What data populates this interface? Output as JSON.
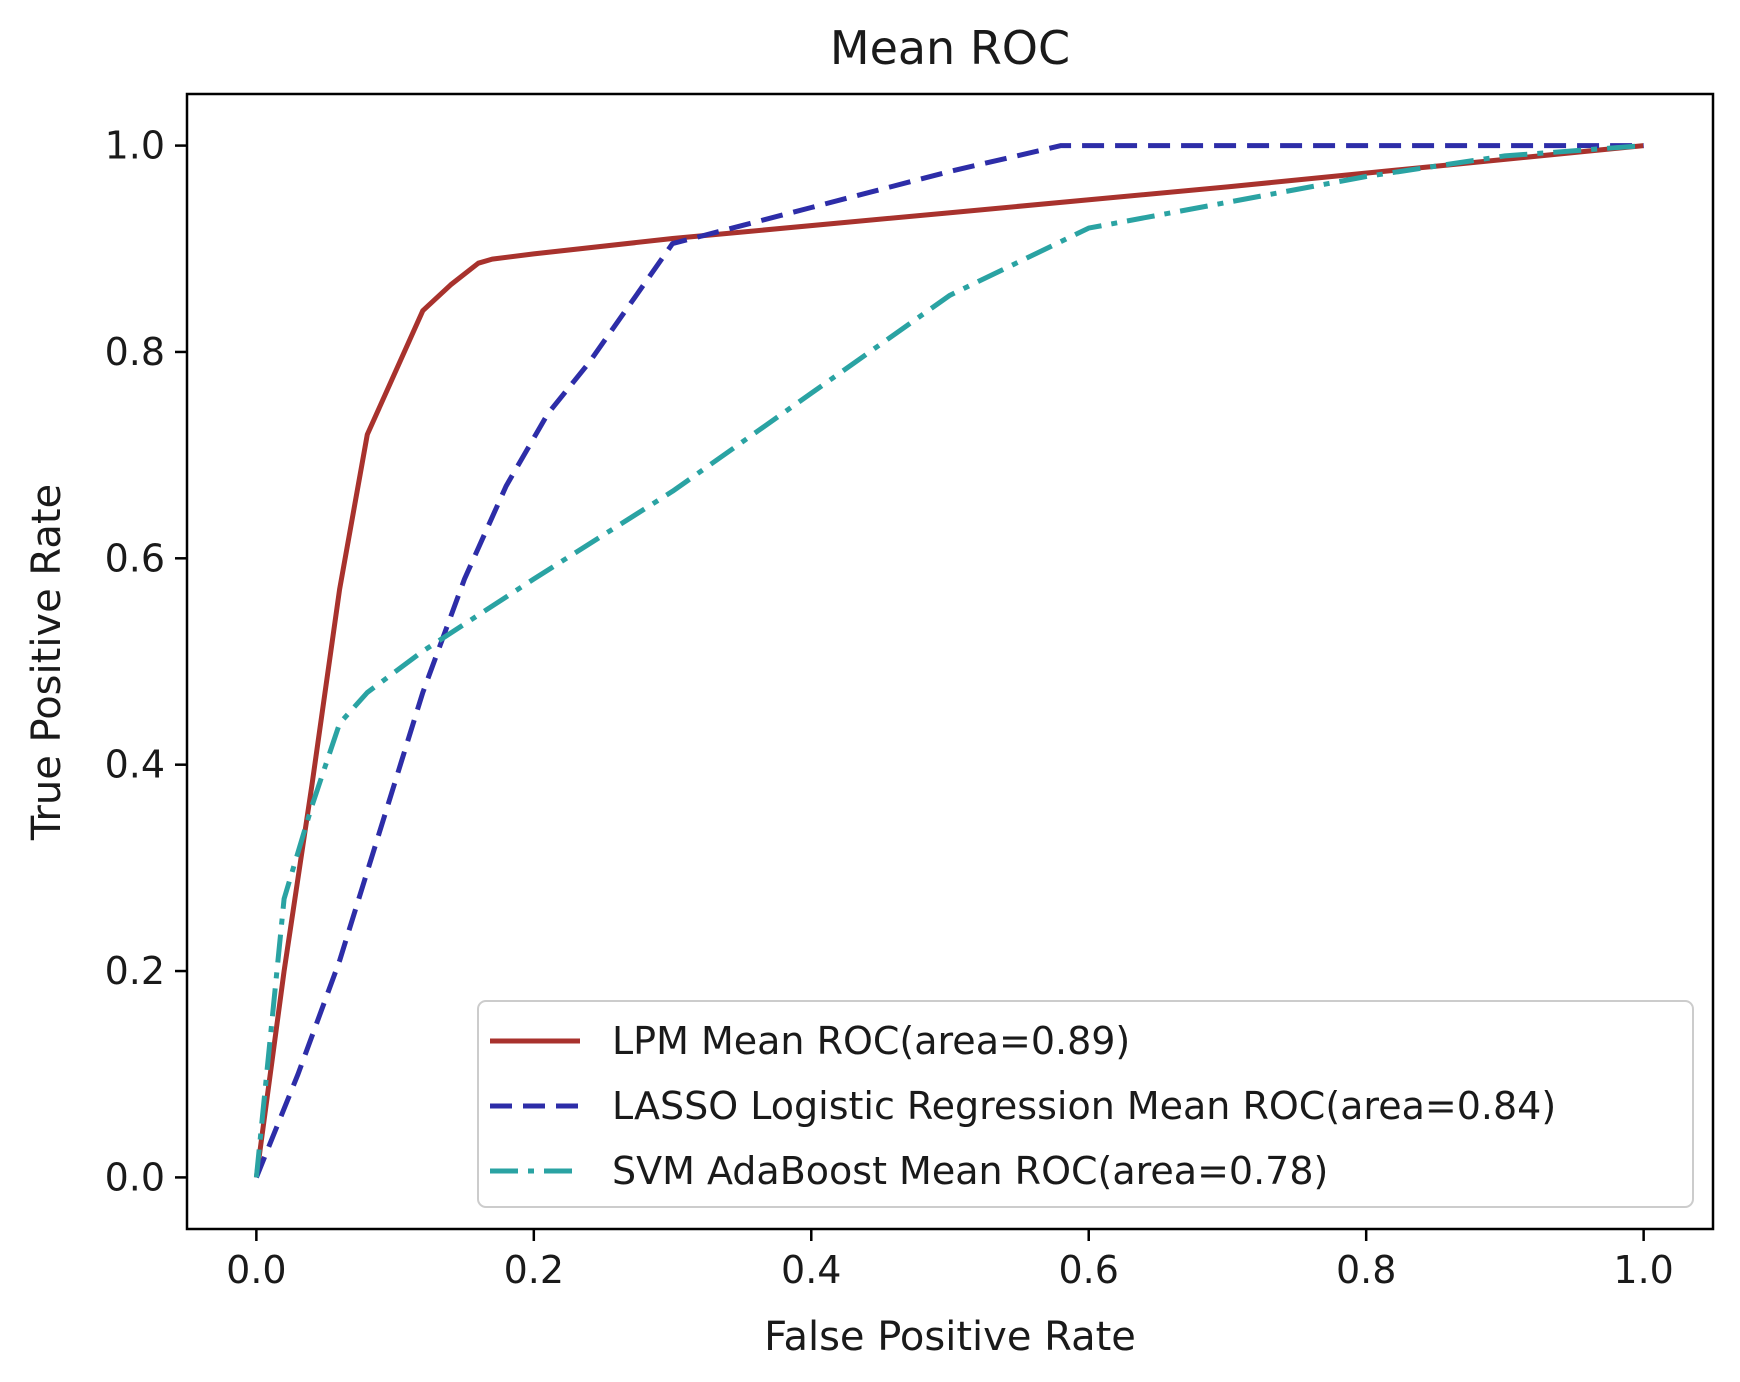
{
  "chart_data": {
    "type": "line",
    "title": "Mean ROC",
    "xlabel": "False Positive Rate",
    "ylabel": "True Positive Rate",
    "xlim": [
      -0.05,
      1.05
    ],
    "ylim": [
      -0.05,
      1.05
    ],
    "xticks": [
      0.0,
      0.2,
      0.4,
      0.6,
      0.8,
      1.0
    ],
    "xtick_labels": [
      "0.0",
      "0.2",
      "0.4",
      "0.6",
      "0.8",
      "1.0"
    ],
    "yticks": [
      0.0,
      0.2,
      0.4,
      0.6,
      0.8,
      1.0
    ],
    "ytick_labels": [
      "0.0",
      "0.2",
      "0.4",
      "0.6",
      "0.8",
      "1.0"
    ],
    "grid": false,
    "legend_position": "lower-right",
    "series": [
      {
        "name": "LPM Mean ROC(area=0.89)",
        "color": "#a8322d",
        "style": "solid",
        "x": [
          0.0,
          0.02,
          0.04,
          0.06,
          0.08,
          0.09,
          0.12,
          0.14,
          0.16,
          0.17,
          0.2,
          0.3,
          0.5,
          0.7,
          0.85,
          1.0
        ],
        "y": [
          0.0,
          0.2,
          0.38,
          0.57,
          0.72,
          0.75,
          0.84,
          0.865,
          0.886,
          0.89,
          0.895,
          0.91,
          0.935,
          0.96,
          0.98,
          1.0
        ]
      },
      {
        "name": "LASSO Logistic Regression Mean ROC(area=0.84)",
        "color": "#2d2da8",
        "style": "dashed",
        "x": [
          0.0,
          0.03,
          0.06,
          0.09,
          0.12,
          0.15,
          0.18,
          0.21,
          0.24,
          0.3,
          0.4,
          0.5,
          0.58,
          0.7,
          0.85,
          1.0
        ],
        "y": [
          0.0,
          0.1,
          0.21,
          0.34,
          0.47,
          0.58,
          0.67,
          0.74,
          0.79,
          0.905,
          0.94,
          0.975,
          1.0,
          1.0,
          1.0,
          1.0
        ]
      },
      {
        "name": "SVM AdaBoost Mean ROC(area=0.78)",
        "color": "#2aa3a3",
        "style": "dashdot",
        "x": [
          0.0,
          0.02,
          0.04,
          0.06,
          0.08,
          0.12,
          0.16,
          0.2,
          0.3,
          0.4,
          0.5,
          0.6,
          0.7,
          0.8,
          0.9,
          1.0
        ],
        "y": [
          0.0,
          0.27,
          0.36,
          0.44,
          0.47,
          0.51,
          0.545,
          0.58,
          0.665,
          0.76,
          0.855,
          0.92,
          0.945,
          0.97,
          0.99,
          1.0
        ]
      }
    ]
  }
}
